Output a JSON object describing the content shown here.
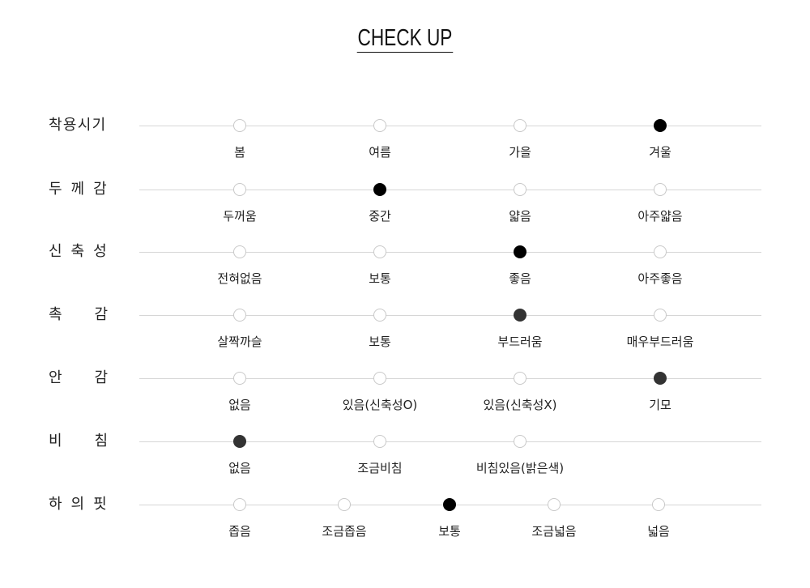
{
  "title": "CHECK UP",
  "colors": {
    "selected_black": "#000000",
    "selected_dark": "#333333",
    "unselected_border": "#c8c8c8",
    "line": "#d6d6d6"
  },
  "rows": [
    {
      "label": "착용시기",
      "options": [
        "봄",
        "여름",
        "가을",
        "겨울"
      ],
      "selected": 3,
      "selected_color": "#000000"
    },
    {
      "label": "두께감",
      "options": [
        "두꺼움",
        "중간",
        "얇음",
        "아주얇음"
      ],
      "selected": 1,
      "selected_color": "#000000"
    },
    {
      "label": "신축성",
      "options": [
        "전혀없음",
        "보통",
        "좋음",
        "아주좋음"
      ],
      "selected": 2,
      "selected_color": "#000000"
    },
    {
      "label": "촉감",
      "options": [
        "살짝까슬",
        "보통",
        "부드러움",
        "매우부드러움"
      ],
      "selected": 2,
      "selected_color": "#333333"
    },
    {
      "label": "안감",
      "options": [
        "없음",
        "있음(신축성O)",
        "있음(신축성X)",
        "기모"
      ],
      "selected": 3,
      "selected_color": "#333333"
    },
    {
      "label": "비침",
      "options": [
        "없음",
        "조금비침",
        "비침있음(밝은색)"
      ],
      "selected": 0,
      "selected_color": "#333333"
    },
    {
      "label": "하의핏",
      "options": [
        "좁음",
        "조금좁음",
        "보통",
        "조금넓음",
        "넓음"
      ],
      "selected": 2,
      "selected_color": "#000000"
    }
  ]
}
